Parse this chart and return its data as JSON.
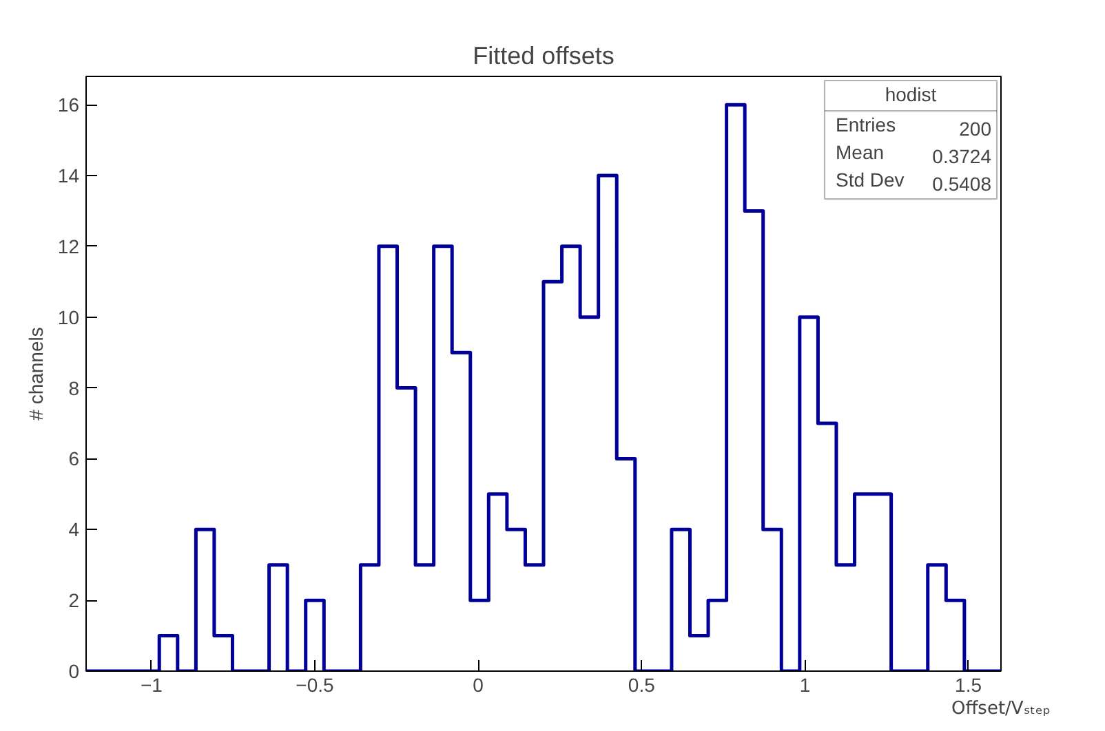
{
  "chart_data": {
    "type": "histogram",
    "title": "Fitted offsets",
    "xlabel": "Offset/Vₛₜₑₚ",
    "ylabel": "# channels",
    "bins": [
      -1.2,
      -1.144,
      -1.088,
      -1.032,
      -0.976,
      -0.92,
      -0.864,
      -0.808,
      -0.752,
      -0.696,
      -0.64,
      -0.584,
      -0.528,
      -0.472,
      -0.416,
      -0.36,
      -0.304,
      -0.248,
      -0.192,
      -0.136,
      -0.08,
      -0.024,
      0.032,
      0.088,
      0.144,
      0.2,
      0.256,
      0.312,
      0.368,
      0.424,
      0.48,
      0.536,
      0.592,
      0.648,
      0.704,
      0.76,
      0.816,
      0.872,
      0.928,
      0.984,
      1.04,
      1.096,
      1.152,
      1.208,
      1.264,
      1.32,
      1.376,
      1.432,
      1.488,
      1.544,
      1.6
    ],
    "values": [
      0,
      0,
      0,
      0,
      1,
      0,
      4,
      1,
      0,
      0,
      3,
      0,
      2,
      0,
      0,
      3,
      12,
      8,
      3,
      12,
      9,
      2,
      5,
      4,
      3,
      11,
      12,
      10,
      14,
      6,
      0,
      0,
      4,
      1,
      2,
      16,
      13,
      4,
      0,
      10,
      7,
      3,
      5,
      5,
      0,
      0,
      3,
      2,
      0,
      0
    ],
    "color": "#000099",
    "xlim": [
      -1.2,
      1.6
    ],
    "ylim": [
      0,
      16.8
    ],
    "xticks": [
      {
        "value": -1,
        "label": "−1"
      },
      {
        "value": -0.5,
        "label": "−0.5"
      },
      0,
      0.5,
      1,
      1.5
    ],
    "yticks": [
      0,
      2,
      4,
      6,
      8,
      10,
      12,
      14,
      16
    ],
    "grid": false,
    "annotations": [
      "hodist",
      "Entries 200",
      "Mean 0.3724",
      "Std Dev 0.5408"
    ]
  }
}
